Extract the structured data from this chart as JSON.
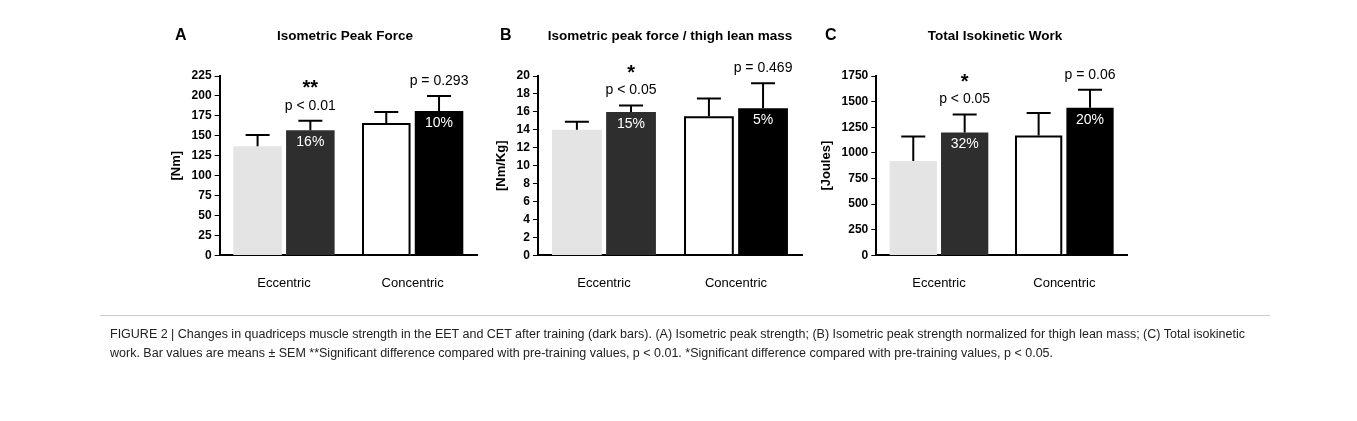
{
  "chart_data": [
    {
      "type": "bar",
      "title": "Isometric Peak Force",
      "ylabel": "[Nm]",
      "categories": [
        "Eccentric",
        "Concentric"
      ],
      "series": [
        {
          "colors": [
            "#e4e4e4",
            "#ffffff"
          ],
          "values": [
            137,
            166
          ],
          "errors": [
            14,
            14
          ]
        },
        {
          "colors": [
            "#2e2e2e",
            "#000000"
          ],
          "values": [
            157,
            181
          ],
          "errors": [
            12,
            19
          ]
        }
      ],
      "ylim": [
        0,
        225
      ],
      "yticks": [
        0,
        25,
        50,
        75,
        100,
        125,
        150,
        175,
        200,
        225
      ],
      "grid": false,
      "annotations": [
        "A",
        "**",
        "p < 0.01",
        "p = 0.293",
        {
          "text": "16%",
          "x": "Eccentric",
          "y": 157
        },
        {
          "text": "10%",
          "x": "Concentric",
          "y": 181
        }
      ]
    },
    {
      "type": "bar",
      "title": "Isometric peak force / thigh lean mass",
      "ylabel": "[Nm/Kg]",
      "categories": [
        "Eccentric",
        "Concentric"
      ],
      "series": [
        {
          "colors": [
            "#e4e4e4",
            "#ffffff"
          ],
          "values": [
            14.0,
            15.5
          ],
          "errors": [
            0.9,
            2.0
          ]
        },
        {
          "colors": [
            "#2e2e2e",
            "#000000"
          ],
          "values": [
            16.0,
            16.4
          ],
          "errors": [
            0.7,
            2.8
          ]
        }
      ],
      "ylim": [
        0,
        20
      ],
      "yticks": [
        0,
        2,
        4,
        6,
        8,
        10,
        12,
        14,
        16,
        18,
        20
      ],
      "grid": false,
      "annotations": [
        "B",
        "*",
        "p < 0.05",
        "p = 0.469",
        {
          "text": "15%",
          "x": "Eccentric",
          "y": 16.0
        },
        {
          "text": "5%",
          "x": "Concentric",
          "y": 16.4
        }
      ]
    },
    {
      "type": "bar",
      "title": "Total Isokinetic Work",
      "ylabel": "[Joules]",
      "categories": [
        "Eccentric",
        "Concentric"
      ],
      "series": [
        {
          "colors": [
            "#e4e4e4",
            "#ffffff"
          ],
          "values": [
            920,
            1170
          ],
          "errors": [
            240,
            220
          ]
        },
        {
          "colors": [
            "#2e2e2e",
            "#000000"
          ],
          "values": [
            1200,
            1440
          ],
          "errors": [
            175,
            175
          ]
        }
      ],
      "ylim": [
        0,
        1750
      ],
      "yticks": [
        0,
        250,
        500,
        750,
        1000,
        1250,
        1500,
        1750
      ],
      "grid": false,
      "annotations": [
        "C",
        "*",
        "p < 0.05",
        "p = 0.06",
        {
          "text": "32%",
          "x": "Eccentric",
          "y": 1200
        },
        {
          "text": "20%",
          "x": "Concentric",
          "y": 1440
        }
      ]
    },
    {
      "type": "other",
      "annotations": [
        "FIGURE 2 | Changes in quadriceps muscle strength in the EET and CET after training (dark bars). (A) Isometric peak strength; (B) Isometric peak strength normalized for thigh lean mass; (C) Total isokinetic work. Bar values are means ± SEM **Significant difference compared with pre-training values, p < 0.01. *Significant difference compared with pre-training values, p < 0.05."
      ]
    }
  ]
}
